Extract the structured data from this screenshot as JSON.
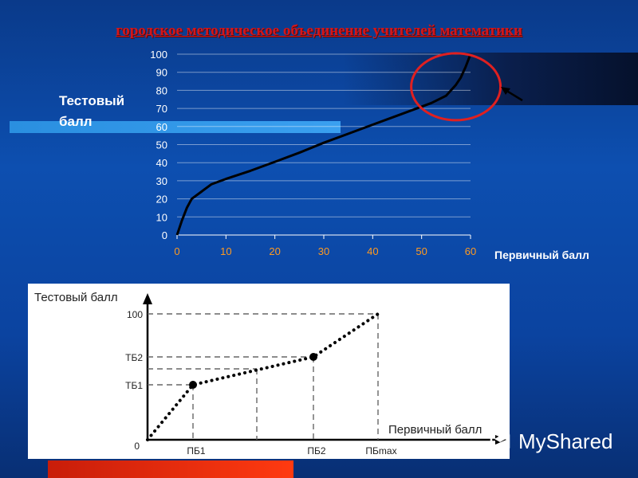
{
  "slide": {
    "title": "городское методическое объединение учителей математики"
  },
  "chart_data": [
    {
      "type": "line",
      "title": "",
      "xlabel": "Первичный балл",
      "ylabel": "Тестовый балл",
      "xlim": [
        0,
        60
      ],
      "ylim": [
        0,
        100
      ],
      "x_ticks": [
        "0",
        "10",
        "20",
        "30",
        "40",
        "50",
        "60"
      ],
      "y_ticks": [
        "0",
        "10",
        "20",
        "30",
        "40",
        "50",
        "60",
        "70",
        "80",
        "90",
        "100"
      ],
      "grid": true,
      "series": [
        {
          "x": [
            0,
            1,
            2,
            3,
            5,
            7,
            10,
            15,
            20,
            25,
            30,
            35,
            40,
            45,
            50,
            52,
            55,
            57,
            58,
            59,
            60
          ],
          "y": [
            0,
            8,
            15,
            20,
            24,
            28,
            31,
            35.5,
            40.5,
            45.5,
            51,
            56,
            61,
            66,
            71,
            73,
            77,
            83,
            87,
            93,
            100
          ]
        }
      ],
      "annotations": [
        "red-circle-highlight",
        "arrow-pointer"
      ]
    },
    {
      "type": "line",
      "title": "",
      "xlabel": "Первичный балл",
      "ylabel": "Тестовый балл",
      "x_ticks": [
        "ПБ1",
        "ПБ2",
        "ПБmax"
      ],
      "y_ticks": [
        "0",
        "ТБ1",
        "ТБ2",
        "100"
      ],
      "style": "dotted-schematic",
      "series": [
        {
          "points": [
            {
              "x": 0,
              "y": 0
            },
            {
              "x": "ПБ1",
              "y": "ТБ1"
            },
            {
              "x": "ПБ2",
              "y": "ТБ2"
            },
            {
              "x": "ПБmax",
              "y": 100
            }
          ]
        }
      ]
    }
  ],
  "watermark": {
    "text": "MyShared",
    "icon": "mortarboard-icon"
  },
  "colors": {
    "title": "#d4161a",
    "curve": "#000000",
    "highlight_circle": "#e02020"
  }
}
